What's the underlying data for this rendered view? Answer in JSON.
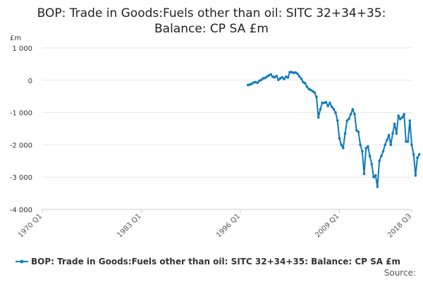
{
  "colors": {
    "series": "#0C7BBF",
    "grid": "#e6e6e6",
    "axis": "#cccccc"
  },
  "chart_data": {
    "type": "line",
    "title_line1": "BOP: Trade in Goods:Fuels other than oil: SITC 32+34+35:",
    "title_line2": "Balance: CP SA £m",
    "ylabel": "£m",
    "ylim": [
      -4000,
      1000
    ],
    "y_ticks": [
      1000,
      0,
      -1000,
      -2000,
      -3000,
      -4000
    ],
    "y_tick_labels": [
      "1 000",
      "0",
      "-1 000",
      "-2 000",
      "-3 000",
      "-4 000"
    ],
    "xlim": [
      1970.0,
      2018.5
    ],
    "x_ticks": [
      1970.0,
      1983.0,
      1996.0,
      2009.0,
      2018.5
    ],
    "x_tick_labels": [
      "1970 Q1",
      "1983 Q1",
      "1996 Q1",
      "2009 Q1",
      "2018 Q3"
    ],
    "grid": true,
    "legend_position": "bottom",
    "series": [
      {
        "name": "BOP: Trade in Goods:Fuels other than oil: SITC 32+34+35: Balance: CP SA £m",
        "x_start": 1997.0,
        "x_step": 0.25,
        "values": [
          -150,
          -130,
          -110,
          -70,
          -60,
          -80,
          -20,
          10,
          60,
          70,
          110,
          150,
          180,
          110,
          90,
          130,
          10,
          60,
          90,
          40,
          110,
          80,
          250,
          250,
          230,
          240,
          200,
          120,
          50,
          -60,
          -90,
          -200,
          -270,
          -300,
          -340,
          -380,
          -520,
          -1150,
          -900,
          -700,
          -700,
          -680,
          -800,
          -700,
          -820,
          -900,
          -1000,
          -1250,
          -1800,
          -2000,
          -2100,
          -1650,
          -1250,
          -1200,
          -1050,
          -900,
          -1050,
          -1550,
          -1600,
          -2000,
          -2200,
          -2900,
          -2100,
          -2050,
          -2350,
          -2600,
          -3000,
          -2950,
          -3300,
          -2500,
          -2350,
          -2200,
          -2000,
          -1850,
          -1700,
          -2000,
          -1650,
          -1350,
          -1650,
          -1100,
          -1200,
          -1150,
          -1050,
          -1900,
          -1900,
          -1250,
          -2000,
          -2300,
          -2950,
          -2400,
          -2300
        ]
      }
    ]
  },
  "legend": {
    "label": "BOP: Trade in Goods:Fuels other than oil: SITC 32+34+35: Balance: CP SA £m"
  },
  "source": {
    "label": "Source:"
  }
}
